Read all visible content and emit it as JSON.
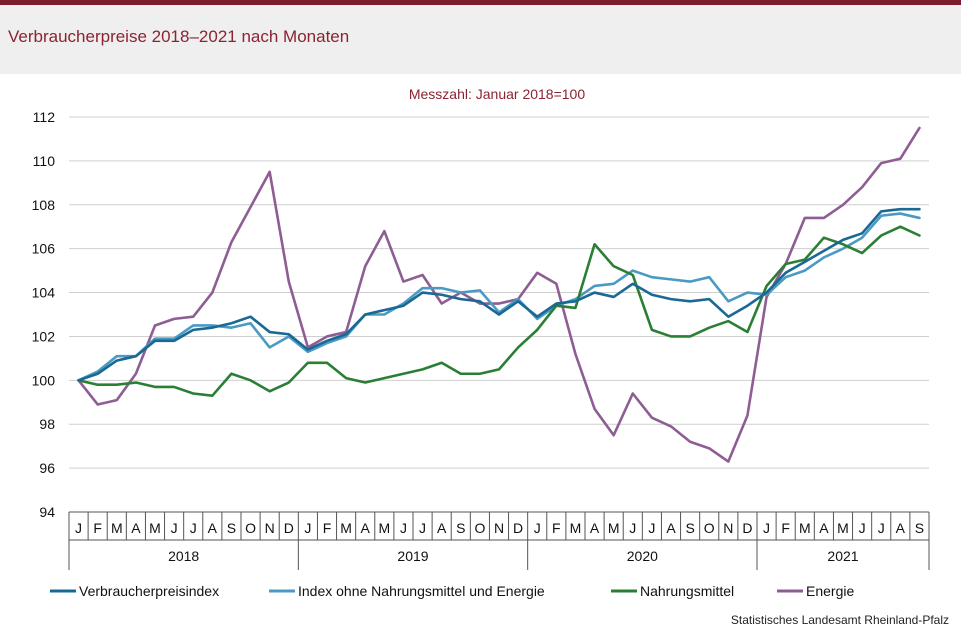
{
  "page": {
    "title": "Verbraucherpreise 2018–2021 nach Monaten",
    "source": "Statistisches Landesamt Rheinland-Pfalz"
  },
  "chart_data": {
    "type": "line",
    "subtitle": "Messzahl:  Januar  2018=100",
    "xlabel": "",
    "ylabel": "",
    "ylim": [
      94,
      112
    ],
    "yticks": [
      94,
      96,
      98,
      100,
      102,
      104,
      106,
      108,
      110,
      112
    ],
    "grid": true,
    "legend_position": "bottom",
    "month_labels": [
      "J",
      "F",
      "M",
      "A",
      "M",
      "J",
      "J",
      "A",
      "S",
      "O",
      "N",
      "D",
      "J",
      "F",
      "M",
      "A",
      "M",
      "J",
      "J",
      "A",
      "S",
      "O",
      "N",
      "D",
      "J",
      "F",
      "M",
      "A",
      "M",
      "J",
      "J",
      "A",
      "S",
      "O",
      "N",
      "D",
      "J",
      "F",
      "M",
      "A",
      "M",
      "J",
      "J",
      "A",
      "S"
    ],
    "years": [
      {
        "label": "2018",
        "months": 12
      },
      {
        "label": "2019",
        "months": 12
      },
      {
        "label": "2020",
        "months": 12
      },
      {
        "label": "2021",
        "months": 9
      }
    ],
    "series": [
      {
        "name": "Verbraucherpreisindex",
        "color": "#1a6894",
        "values": [
          100.0,
          100.3,
          100.9,
          101.1,
          101.8,
          101.8,
          102.3,
          102.4,
          102.6,
          102.9,
          102.2,
          102.1,
          101.4,
          101.8,
          102.1,
          103.0,
          103.2,
          103.4,
          104.0,
          103.9,
          103.7,
          103.6,
          103.0,
          103.6,
          102.9,
          103.5,
          103.6,
          104.0,
          103.8,
          104.4,
          103.9,
          103.7,
          103.6,
          103.7,
          102.9,
          103.4,
          104.0,
          104.9,
          105.4,
          105.9,
          106.4,
          106.7,
          107.7,
          107.8,
          107.8
        ]
      },
      {
        "name": "Index ohne Nahrungsmittel und Energie",
        "color": "#4b9ac4",
        "values": [
          100.0,
          100.4,
          101.1,
          101.1,
          101.9,
          101.9,
          102.5,
          102.5,
          102.4,
          102.6,
          101.5,
          102.0,
          101.3,
          101.7,
          102.0,
          103.0,
          103.0,
          103.5,
          104.2,
          104.2,
          104.0,
          104.1,
          103.1,
          103.7,
          102.8,
          103.4,
          103.7,
          104.3,
          104.4,
          105.0,
          104.7,
          104.6,
          104.5,
          104.7,
          103.6,
          104.0,
          103.9,
          104.7,
          105.0,
          105.6,
          106.0,
          106.5,
          107.5,
          107.6,
          107.4
        ]
      },
      {
        "name": "Nahrungsmittel",
        "color": "#2b7f35",
        "values": [
          100.0,
          99.8,
          99.8,
          99.9,
          99.7,
          99.7,
          99.4,
          99.3,
          100.3,
          100.0,
          99.5,
          99.9,
          100.8,
          100.8,
          100.1,
          99.9,
          100.1,
          100.3,
          100.5,
          100.8,
          100.3,
          100.3,
          100.5,
          101.5,
          102.3,
          103.4,
          103.3,
          106.2,
          105.2,
          104.8,
          102.3,
          102.0,
          102.0,
          102.4,
          102.7,
          102.2,
          104.3,
          105.3,
          105.5,
          106.5,
          106.2,
          105.8,
          106.6,
          107.0,
          106.6
        ]
      },
      {
        "name": "Energie",
        "color": "#8e5d94",
        "values": [
          100.0,
          98.9,
          99.1,
          100.3,
          102.5,
          102.8,
          102.9,
          104.0,
          106.3,
          107.9,
          109.5,
          104.5,
          101.5,
          102.0,
          102.2,
          105.2,
          106.8,
          104.5,
          104.8,
          103.5,
          104.0,
          103.5,
          103.5,
          103.7,
          104.9,
          104.4,
          101.2,
          98.7,
          97.5,
          99.4,
          98.3,
          97.9,
          97.2,
          96.9,
          96.3,
          98.4,
          103.8,
          105.3,
          107.4,
          107.4,
          108.0,
          108.8,
          109.9,
          110.1,
          111.5
        ]
      }
    ]
  }
}
